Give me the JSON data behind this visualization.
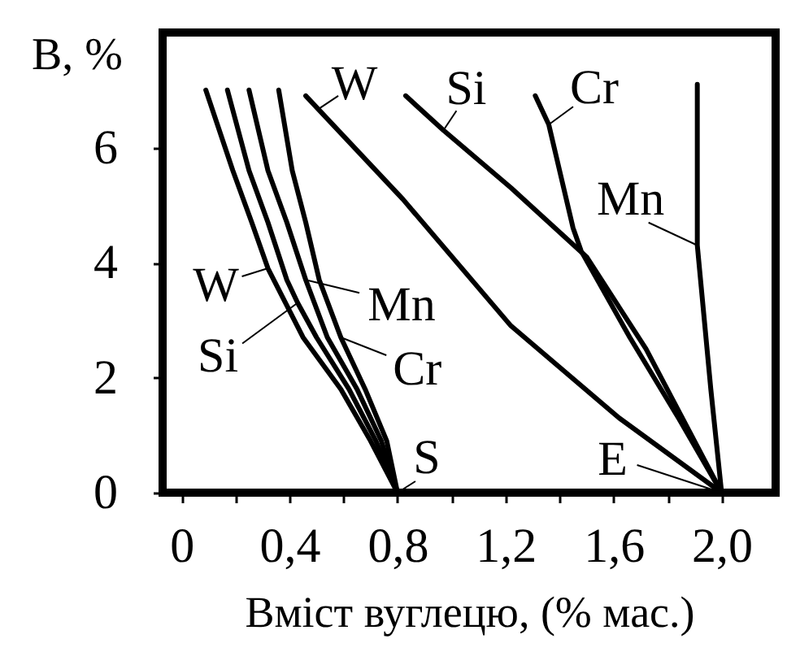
{
  "chart_data": {
    "type": "line",
    "xlabel": "Вміст вуглецю, (% мас.)",
    "ylabel": "В, %",
    "xlim": [
      -0.07,
      2.2
    ],
    "ylim": [
      0,
      8
    ],
    "xticks": [
      0,
      {
        "value": 0.2,
        "label": null
      },
      {
        "value": 0.4,
        "label": "0,4"
      },
      {
        "value": 0.6,
        "label": null
      },
      {
        "value": 0.8,
        "label": "0,8"
      },
      {
        "value": 1.0,
        "label": null
      },
      {
        "value": 1.2,
        "label": "1,2"
      },
      {
        "value": 1.4,
        "label": null
      },
      {
        "value": 1.6,
        "label": "1,6"
      },
      {
        "value": 1.8,
        "label": null
      },
      {
        "value": 2.0,
        "label": "2,0"
      }
    ],
    "yticks": [
      0,
      2,
      4,
      6
    ],
    "series": [
      {
        "color": "#000000",
        "x": [
          0.09,
          0.19,
          0.26,
          0.32,
          0.45,
          0.59,
          0.7,
          0.8
        ],
        "values": [
          7.0,
          5.6,
          4.7,
          3.9,
          2.7,
          1.8,
          0.9,
          0
        ]
      },
      {
        "color": "#000000",
        "x": [
          0.17,
          0.25,
          0.32,
          0.39,
          0.43,
          0.5,
          0.62,
          0.72,
          0.8
        ],
        "values": [
          7.0,
          5.6,
          4.7,
          3.7,
          3.3,
          2.7,
          1.8,
          0.9,
          0
        ]
      },
      {
        "color": "#000000",
        "x": [
          0.25,
          0.32,
          0.39,
          0.46,
          0.54,
          0.65,
          0.74,
          0.8
        ],
        "values": [
          7.0,
          5.6,
          4.7,
          3.7,
          2.7,
          1.8,
          0.9,
          0
        ]
      },
      {
        "color": "#000000",
        "x": [
          0.36,
          0.41,
          0.46,
          0.51,
          0.59,
          0.68,
          0.76,
          0.8
        ],
        "values": [
          7.0,
          5.6,
          4.7,
          3.7,
          2.7,
          1.8,
          0.9,
          0
        ]
      },
      {
        "color": "#000000",
        "x": [
          0.46,
          0.82,
          1.22,
          1.62,
          2.0
        ],
        "values": [
          6.9,
          5.1,
          2.9,
          1.3,
          0
        ]
      },
      {
        "color": "#000000",
        "x": [
          0.83,
          0.97,
          1.22,
          1.5,
          1.72,
          2.0
        ],
        "values": [
          6.9,
          6.3,
          5.3,
          4.1,
          2.5,
          0
        ]
      },
      {
        "color": "#000000",
        "x": [
          1.31,
          1.36,
          1.39,
          1.45,
          1.48,
          1.66,
          1.84,
          2.0
        ],
        "values": [
          6.9,
          6.4,
          5.8,
          4.6,
          4.2,
          2.7,
          1.3,
          0
        ]
      },
      {
        "color": "#000000",
        "x": [
          1.91,
          1.91,
          1.96,
          2.0
        ],
        "values": [
          7.1,
          4.3,
          1.8,
          0
        ]
      }
    ],
    "annotations": [
      {
        "text": "W",
        "x": 0.32,
        "y": 3.9
      },
      {
        "text": "Si",
        "x": 0.43,
        "y": 3.3
      },
      {
        "text": "Mn",
        "x": 0.46,
        "y": 3.7
      },
      {
        "text": "Cr",
        "x": 0.59,
        "y": 2.7
      },
      {
        "text": "W",
        "x": 0.46,
        "y": 6.9
      },
      {
        "text": "Si",
        "x": 0.97,
        "y": 6.3
      },
      {
        "text": "Cr",
        "x": 1.36,
        "y": 6.4
      },
      {
        "text": "Mn",
        "x": 1.91,
        "y": 4.3
      },
      {
        "text": "S",
        "x": 0.8,
        "y": 0
      },
      {
        "text": "E",
        "x": 2.0,
        "y": 0
      }
    ]
  }
}
